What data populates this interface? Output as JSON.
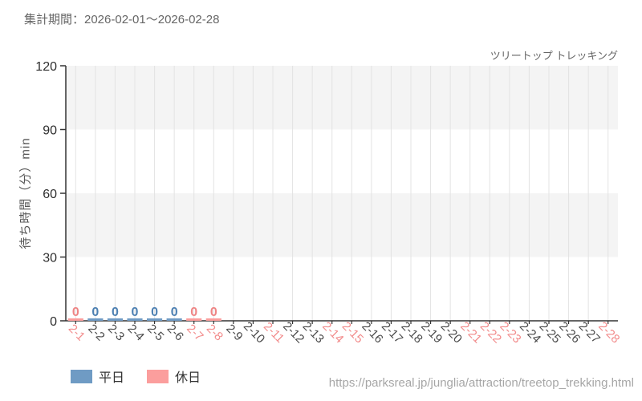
{
  "header": {
    "period": "集計期間：2026-02-01～2026-02-28"
  },
  "footer": {
    "url": "https://parksreal.jp/junglia/attraction/treetop_trekking.html"
  },
  "chart_data": {
    "type": "bar",
    "title": "ツリートップ トレッキング",
    "xlabel": "",
    "ylabel": "待ち時間（分）min",
    "ylim": [
      0,
      120
    ],
    "yticks": [
      0,
      30,
      60,
      90,
      120
    ],
    "grid": true,
    "legend_position": "bottom-left",
    "categories": [
      "2-1",
      "2-2",
      "2-3",
      "2-4",
      "2-5",
      "2-6",
      "2-7",
      "2-8",
      "2-9",
      "2-10",
      "2-11",
      "2-12",
      "2-13",
      "2-14",
      "2-15",
      "2-16",
      "2-17",
      "2-18",
      "2-19",
      "2-20",
      "2-21",
      "2-22",
      "2-23",
      "2-24",
      "2-25",
      "2-26",
      "2-27",
      "2-28"
    ],
    "holiday_dates": [
      "2-1",
      "2-7",
      "2-8",
      "2-11",
      "2-14",
      "2-15",
      "2-21",
      "2-22",
      "2-23",
      "2-28"
    ],
    "series": [
      {
        "name": "平日",
        "bar_color": "#6f9bc4",
        "label_color": "#4d80b2",
        "values": [
          null,
          0,
          0,
          0,
          0,
          0,
          null,
          null,
          null,
          null,
          null,
          null,
          null,
          null,
          null,
          null,
          null,
          null,
          null,
          null,
          null,
          null,
          null,
          null,
          null,
          null,
          null,
          null
        ]
      },
      {
        "name": "休日",
        "bar_color": "#fb9e9d",
        "label_color": "#ee8585",
        "values": [
          0,
          null,
          null,
          null,
          null,
          null,
          0,
          0,
          null,
          null,
          null,
          null,
          null,
          null,
          null,
          null,
          null,
          null,
          null,
          null,
          null,
          null,
          null,
          null,
          null,
          null,
          null,
          null
        ]
      }
    ],
    "colors": {
      "grid": "#e3e3e3",
      "band_gray": "#f4f4f4",
      "band_white": "#ffffff",
      "axis": "#333333",
      "y_tick_label": "#2e2e2e",
      "x_label_weekday": "#4a4a4a",
      "x_label_holiday": "#f28b8b"
    }
  }
}
